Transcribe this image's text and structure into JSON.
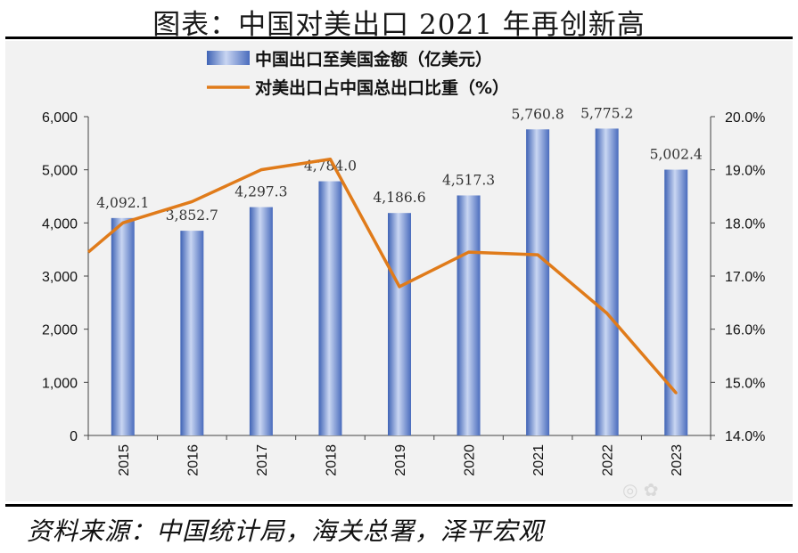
{
  "page": {
    "title": "图表：中国对美出口 2021 年再创新高",
    "source": "资料来源：中国统计局，海关总署，泽平宏观"
  },
  "chart_data": {
    "type": "bar",
    "categories": [
      "2015",
      "2016",
      "2017",
      "2018",
      "2019",
      "2020",
      "2021",
      "2022",
      "2023"
    ],
    "series": [
      {
        "name": "中国出口至美国金额（亿美元）",
        "type": "bar",
        "axis": "left",
        "color": "#6f8fce",
        "values": [
          4092.1,
          3852.7,
          4297.3,
          4784.0,
          4186.6,
          4517.3,
          5760.8,
          5775.2,
          5002.4
        ],
        "labels": [
          "4,092.1",
          "3,852.7",
          "4,297.3",
          "4,784.0",
          "4,186.6",
          "4,517.3",
          "5,760.8",
          "5,775.2",
          "5,002.4"
        ]
      },
      {
        "name": "对美出口占中国总出口比重（%）",
        "type": "line",
        "axis": "right",
        "color": "#e07b1a",
        "values": [
          18.0,
          18.4,
          19.0,
          19.2,
          16.8,
          17.45,
          17.4,
          16.3,
          14.8
        ]
      }
    ],
    "y_left": {
      "min": 0,
      "max": 6000,
      "ticks": [
        "0",
        "1,000",
        "2,000",
        "3,000",
        "4,000",
        "5,000",
        "6,000"
      ]
    },
    "y_right": {
      "min": 14.0,
      "max": 20.0,
      "ticks": [
        "14.0%",
        "15.0%",
        "16.0%",
        "17.0%",
        "18.0%",
        "19.0%",
        "20.0%"
      ]
    },
    "line_start_value": 17.45,
    "legend_position": "top-center",
    "grid": false
  }
}
